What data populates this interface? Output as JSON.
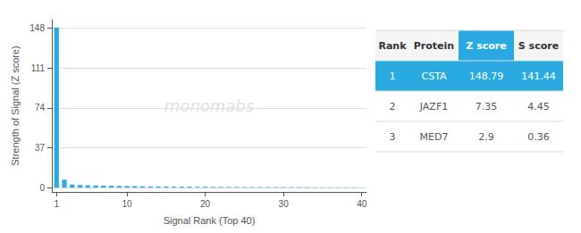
{
  "chart_data": {
    "type": "bar",
    "xlabel": "Signal Rank (Top 40)",
    "ylabel": "Strength of Signal (Z score)",
    "x": [
      1,
      2,
      3,
      4,
      5,
      6,
      7,
      8,
      9,
      10,
      11,
      12,
      13,
      14,
      15,
      16,
      17,
      18,
      19,
      20,
      21,
      22,
      23,
      24,
      25,
      26,
      27,
      28,
      29,
      30,
      31,
      32,
      33,
      34,
      35,
      36,
      37,
      38,
      39,
      40
    ],
    "values": [
      148.79,
      7.35,
      2.9,
      2.5,
      2.2,
      2.0,
      1.8,
      1.7,
      1.6,
      1.5,
      1.4,
      1.3,
      1.2,
      1.1,
      1.0,
      0.95,
      0.9,
      0.85,
      0.8,
      0.75,
      0.7,
      0.65,
      0.6,
      0.58,
      0.55,
      0.52,
      0.5,
      0.48,
      0.46,
      0.44,
      0.42,
      0.4,
      0.38,
      0.36,
      0.34,
      0.32,
      0.3,
      0.28,
      0.26,
      0.24
    ],
    "color": "#29ABE2",
    "xlim": [
      0.4,
      40.6
    ],
    "xticks": [
      1,
      10,
      20,
      30,
      40
    ],
    "ylim": [
      -4,
      156
    ],
    "yticks": [
      0,
      37,
      74,
      111,
      148
    ],
    "grid": true,
    "annotations": [
      "monomabs"
    ],
    "table": {
      "headers": [
        "Rank",
        "Protein",
        "Z score",
        "S score"
      ],
      "rows": [
        [
          "1",
          "CSTA",
          "148.79",
          "141.44"
        ],
        [
          "2",
          "JAZF1",
          "7.35",
          "4.45"
        ],
        [
          "3",
          "MED7",
          "2.9",
          "0.36"
        ]
      ],
      "highlight": [
        true,
        false,
        false
      ]
    }
  }
}
